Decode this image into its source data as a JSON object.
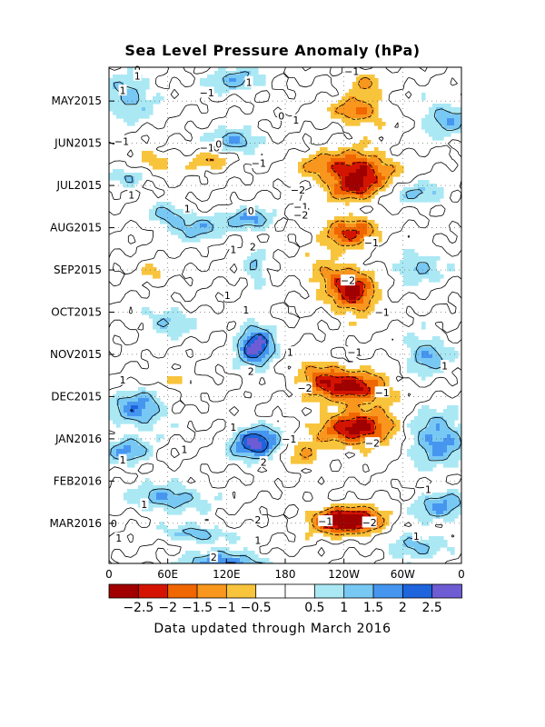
{
  "chart_data": {
    "type": "heatmap",
    "title": "Sea Level Pressure Anomaly (hPa)",
    "footnote": "Data updated through March 2016",
    "x_ticks": [
      "0",
      "60E",
      "120E",
      "180",
      "120W",
      "60W",
      "0"
    ],
    "x_tick_values": [
      0,
      60,
      120,
      180,
      240,
      300,
      360
    ],
    "xlim": [
      0,
      360
    ],
    "y_ticks": [
      "MAY2015",
      "JUN2015",
      "JUL2015",
      "AUG2015",
      "SEP2015",
      "OCT2015",
      "NOV2015",
      "DEC2015",
      "JAN2016",
      "FEB2016",
      "MAR2016"
    ],
    "y_tick_values": [
      4,
      5,
      6,
      7,
      8,
      9,
      10,
      11,
      12,
      13,
      14
    ],
    "ylim": [
      3.2,
      14.95
    ],
    "colorbar": {
      "colors": [
        "#a00000",
        "#d41400",
        "#f06600",
        "#f8961e",
        "#f8c43c",
        "#ffffff",
        "#ffffff",
        "#aae8f4",
        "#78c8f4",
        "#4696f0",
        "#1e64dc",
        "#6e5cd4"
      ],
      "labels": [
        "−2.5",
        "−2",
        "−1.5",
        "−1",
        "−0.5",
        "0.5",
        "1",
        "1.5",
        "2",
        "2.5"
      ],
      "label_values": [
        -2.5,
        -2,
        -1.5,
        -1,
        -0.5,
        0.5,
        1,
        1.5,
        2,
        2.5
      ]
    },
    "features": [
      {
        "lon": 260,
        "t": 3.55,
        "rl": 18,
        "rt": 0.28,
        "amp": -1.1
      },
      {
        "lon": 255,
        "t": 4.25,
        "rl": 24,
        "rt": 0.3,
        "amp": -1.7
      },
      {
        "lon": 255,
        "t": 5.6,
        "rl": 32,
        "rt": 0.4,
        "amp": -2.4
      },
      {
        "lon": 250,
        "t": 6.05,
        "rl": 26,
        "rt": 0.3,
        "amp": -1.9
      },
      {
        "lon": 215,
        "t": 5.55,
        "rl": 24,
        "rt": 0.3,
        "amp": -0.9
      },
      {
        "lon": 245,
        "t": 7.1,
        "rl": 26,
        "rt": 0.35,
        "amp": -2.1
      },
      {
        "lon": 250,
        "t": 8.55,
        "rl": 22,
        "rt": 0.45,
        "amp": -2.6
      },
      {
        "lon": 225,
        "t": 8.1,
        "rl": 22,
        "rt": 0.35,
        "amp": -1.2
      },
      {
        "lon": 250,
        "t": 10.8,
        "rl": 34,
        "rt": 0.35,
        "amp": -2.7
      },
      {
        "lon": 255,
        "t": 11.75,
        "rl": 38,
        "rt": 0.4,
        "amp": -2.7
      },
      {
        "lon": 250,
        "t": 13.95,
        "rl": 32,
        "rt": 0.3,
        "amp": -2.6
      },
      {
        "lon": 230,
        "t": 13.9,
        "rl": 26,
        "rt": 0.25,
        "amp": -1.6
      },
      {
        "lon": 45,
        "t": 5.4,
        "rl": 18,
        "rt": 0.2,
        "amp": -1.1
      },
      {
        "lon": 105,
        "t": 5.4,
        "rl": 20,
        "rt": 0.2,
        "amp": -0.9
      },
      {
        "lon": 65,
        "t": 10.6,
        "rl": 24,
        "rt": 0.2,
        "amp": -0.7
      },
      {
        "lon": 45,
        "t": 8.0,
        "rl": 14,
        "rt": 0.2,
        "amp": -0.6
      },
      {
        "lon": 215,
        "t": 10.5,
        "rl": 22,
        "rt": 0.35,
        "amp": -1.6
      },
      {
        "lon": 200,
        "t": 12.4,
        "rl": 20,
        "rt": 0.3,
        "amp": -1.0
      },
      {
        "lon": 150,
        "t": 9.8,
        "rl": 18,
        "rt": 0.5,
        "amp": 2.7
      },
      {
        "lon": 150,
        "t": 12.1,
        "rl": 24,
        "rt": 0.4,
        "amp": 2.6
      },
      {
        "lon": 145,
        "t": 6.8,
        "rl": 22,
        "rt": 0.25,
        "amp": 1.7
      },
      {
        "lon": 150,
        "t": 8.0,
        "rl": 10,
        "rt": 0.5,
        "amp": 1.1
      },
      {
        "lon": 130,
        "t": 4.95,
        "rl": 24,
        "rt": 0.25,
        "amp": 1.7
      },
      {
        "lon": 90,
        "t": 7.0,
        "rl": 28,
        "rt": 0.3,
        "amp": 1.2
      },
      {
        "lon": 60,
        "t": 6.7,
        "rl": 20,
        "rt": 0.25,
        "amp": 1.3
      },
      {
        "lon": 60,
        "t": 9.2,
        "rl": 24,
        "rt": 0.3,
        "amp": 1.2
      },
      {
        "lon": 30,
        "t": 11.3,
        "rl": 26,
        "rt": 0.4,
        "amp": 1.9
      },
      {
        "lon": 20,
        "t": 12.3,
        "rl": 22,
        "rt": 0.3,
        "amp": 1.6
      },
      {
        "lon": 60,
        "t": 13.4,
        "rl": 36,
        "rt": 0.3,
        "amp": 1.6
      },
      {
        "lon": 120,
        "t": 15.0,
        "rl": 40,
        "rt": 0.3,
        "amp": 2.2
      },
      {
        "lon": 90,
        "t": 14.25,
        "rl": 30,
        "rt": 0.2,
        "amp": 1.5
      },
      {
        "lon": 20,
        "t": 3.9,
        "rl": 26,
        "rt": 0.45,
        "amp": 1.4
      },
      {
        "lon": 20,
        "t": 5.85,
        "rl": 20,
        "rt": 0.2,
        "amp": 1.0
      },
      {
        "lon": 345,
        "t": 4.4,
        "rl": 26,
        "rt": 0.4,
        "amp": 1.4
      },
      {
        "lon": 325,
        "t": 10.0,
        "rl": 22,
        "rt": 0.4,
        "amp": 1.6
      },
      {
        "lon": 335,
        "t": 12.0,
        "rl": 30,
        "rt": 0.6,
        "amp": 1.8
      },
      {
        "lon": 340,
        "t": 13.6,
        "rl": 28,
        "rt": 0.35,
        "amp": 1.5
      },
      {
        "lon": 310,
        "t": 14.5,
        "rl": 30,
        "rt": 0.3,
        "amp": 1.3
      },
      {
        "lon": 320,
        "t": 6.2,
        "rl": 28,
        "rt": 0.25,
        "amp": 1.1
      },
      {
        "lon": 315,
        "t": 7.9,
        "rl": 26,
        "rt": 0.4,
        "amp": 1.1
      },
      {
        "lon": 130,
        "t": 3.5,
        "rl": 30,
        "rt": 0.3,
        "amp": 1.2
      }
    ],
    "contour_labels": [
      {
        "text": "0",
        "lon": 29,
        "t": 3.25
      },
      {
        "text": "1",
        "lon": 29,
        "t": 3.4
      },
      {
        "text": "1",
        "lon": 143,
        "t": 3.55
      },
      {
        "text": "1",
        "lon": 14,
        "t": 3.75
      },
      {
        "text": "−1",
        "lon": 100,
        "t": 3.8
      },
      {
        "text": "0",
        "lon": 176,
        "t": 4.35
      },
      {
        "text": "1",
        "lon": 191,
        "t": 4.45
      },
      {
        "text": "−1",
        "lon": 100,
        "t": 5.1
      },
      {
        "text": "0",
        "lon": 110,
        "t": 5.1
      },
      {
        "text": "−1",
        "lon": 13,
        "t": 4.95
      },
      {
        "text": "0",
        "lon": 112,
        "t": 5.02
      },
      {
        "text": "−1",
        "lon": 153,
        "t": 5.47
      },
      {
        "text": "−2",
        "lon": 193,
        "t": 6.1
      },
      {
        "text": "1",
        "lon": 23,
        "t": 6.22
      },
      {
        "text": "1",
        "lon": 80,
        "t": 6.55
      },
      {
        "text": "−1",
        "lon": 196,
        "t": 6.5
      },
      {
        "text": "−2",
        "lon": 196,
        "t": 6.7
      },
      {
        "text": "0",
        "lon": 145,
        "t": 6.6
      },
      {
        "text": "1",
        "lon": 127,
        "t": 7.52
      },
      {
        "text": "2",
        "lon": 147,
        "t": 7.45
      },
      {
        "text": "−1",
        "lon": 268,
        "t": 7.35
      },
      {
        "text": "−2",
        "lon": 244,
        "t": 8.25
      },
      {
        "text": "1",
        "lon": 121,
        "t": 8.6
      },
      {
        "text": "1",
        "lon": 140,
        "t": 8.95
      },
      {
        "text": "−1",
        "lon": 279,
        "t": 9.0
      },
      {
        "text": "1",
        "lon": 185,
        "t": 9.95
      },
      {
        "text": "−1",
        "lon": 251,
        "t": 9.95
      },
      {
        "text": "1",
        "lon": 343,
        "t": 10.27
      },
      {
        "text": "2",
        "lon": 145,
        "t": 10.4
      },
      {
        "text": "−2",
        "lon": 200,
        "t": 10.8
      },
      {
        "text": "1",
        "lon": 14,
        "t": 10.6
      },
      {
        "text": "−1",
        "lon": 279,
        "t": 10.9
      },
      {
        "text": "1",
        "lon": 127,
        "t": 11.72
      },
      {
        "text": "−1",
        "lon": 184,
        "t": 12.0
      },
      {
        "text": "−2",
        "lon": 269,
        "t": 12.1
      },
      {
        "text": "1",
        "lon": 77,
        "t": 12.25
      },
      {
        "text": "1",
        "lon": 14,
        "t": 12.5
      },
      {
        "text": "2",
        "lon": 158,
        "t": 12.55
      },
      {
        "text": "1",
        "lon": 326,
        "t": 13.2
      },
      {
        "text": "1",
        "lon": 36,
        "t": 13.55
      },
      {
        "text": "2",
        "lon": 152,
        "t": 13.92
      },
      {
        "text": "−1",
        "lon": 221,
        "t": 13.95
      },
      {
        "text": "−2",
        "lon": 266,
        "t": 13.98
      },
      {
        "text": "0",
        "lon": 5,
        "t": 14.0
      },
      {
        "text": "1",
        "lon": 10,
        "t": 14.35
      },
      {
        "text": "1",
        "lon": 314,
        "t": 14.3
      },
      {
        "text": "1",
        "lon": 152,
        "t": 14.4
      },
      {
        "text": "2",
        "lon": 107,
        "t": 14.8
      },
      {
        "text": "−1",
        "lon": 248,
        "t": 3.3
      }
    ]
  }
}
